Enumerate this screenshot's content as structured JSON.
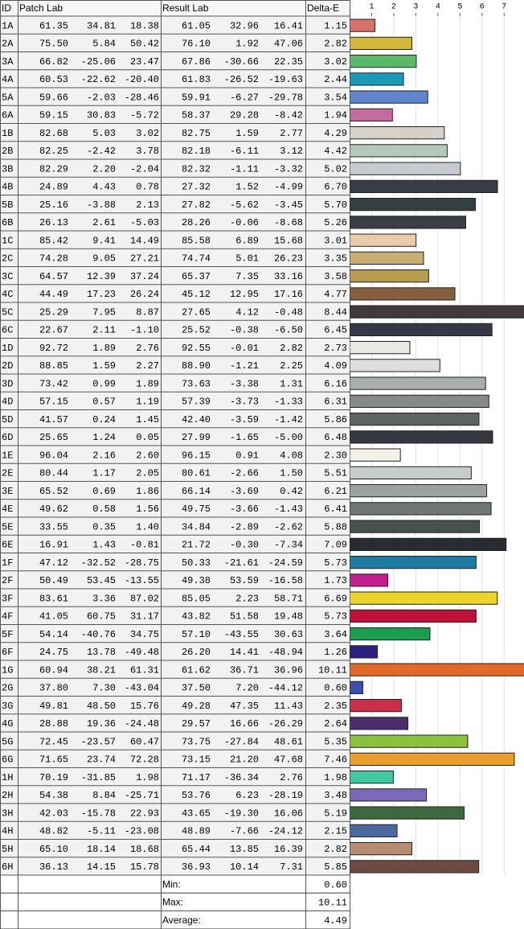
{
  "header": {
    "id": "ID",
    "patch": "Patch Lab",
    "result": "Result Lab",
    "delta": "Delta-E"
  },
  "chart": {
    "xlim": [
      0,
      7.9
    ],
    "xticks": [
      1,
      2,
      3,
      4,
      5,
      6,
      7
    ]
  },
  "rows": [
    {
      "id": "1A",
      "patch": [
        "61.35",
        "34.81",
        "18.38"
      ],
      "result": [
        "61.05",
        "32.96",
        "16.41"
      ],
      "delta_e": "1.15",
      "color": "#d9706a"
    },
    {
      "id": "2A",
      "patch": [
        "75.50",
        "5.84",
        "50.42"
      ],
      "result": [
        "76.10",
        "1.92",
        "47.06"
      ],
      "delta_e": "2.82",
      "color": "#d4b83a"
    },
    {
      "id": "3A",
      "patch": [
        "66.82",
        "-25.06",
        "23.47"
      ],
      "result": [
        "67.86",
        "-30.66",
        "22.35"
      ],
      "delta_e": "3.02",
      "color": "#5cb86a"
    },
    {
      "id": "4A",
      "patch": [
        "60.53",
        "-22.62",
        "-20.40"
      ],
      "result": [
        "61.83",
        "-26.52",
        "-19.63"
      ],
      "delta_e": "2.44",
      "color": "#1b9ab8"
    },
    {
      "id": "5A",
      "patch": [
        "59.66",
        "-2.03",
        "-28.46"
      ],
      "result": [
        "59.91",
        "-6.27",
        "-29.78"
      ],
      "delta_e": "3.54",
      "color": "#5f86cc"
    },
    {
      "id": "6A",
      "patch": [
        "59.15",
        "30.83",
        "-5.72"
      ],
      "result": [
        "58.37",
        "29.28",
        "-8.42"
      ],
      "delta_e": "1.94",
      "color": "#c56a9c"
    },
    {
      "id": "1B",
      "patch": [
        "82.68",
        "5.03",
        "3.02"
      ],
      "result": [
        "82.75",
        "1.59",
        "2.77"
      ],
      "delta_e": "4.29",
      "color": "#d6d0cb"
    },
    {
      "id": "2B",
      "patch": [
        "82.25",
        "-2.42",
        "3.78"
      ],
      "result": [
        "82.18",
        "-6.11",
        "3.12"
      ],
      "delta_e": "4.42",
      "color": "#b5c9bb"
    },
    {
      "id": "3B",
      "patch": [
        "82.29",
        "2.20",
        "-2.04"
      ],
      "result": [
        "82.32",
        "-1.11",
        "-3.32"
      ],
      "delta_e": "5.02",
      "color": "#c7cbd1"
    },
    {
      "id": "4B",
      "patch": [
        "24.89",
        "4.43",
        "0.78"
      ],
      "result": [
        "27.32",
        "1.52",
        "-4.99"
      ],
      "delta_e": "6.70",
      "color": "#3a3c44"
    },
    {
      "id": "5B",
      "patch": [
        "25.16",
        "-3.88",
        "2.13"
      ],
      "result": [
        "27.82",
        "-5.62",
        "-3.45"
      ],
      "delta_e": "5.70",
      "color": "#33403f"
    },
    {
      "id": "6B",
      "patch": [
        "26.13",
        "2.61",
        "-5.03"
      ],
      "result": [
        "28.26",
        "-0.06",
        "-8.68"
      ],
      "delta_e": "5.26",
      "color": "#3a3d44"
    },
    {
      "id": "1C",
      "patch": [
        "85.42",
        "9.41",
        "14.49"
      ],
      "result": [
        "85.58",
        "6.89",
        "15.68"
      ],
      "delta_e": "3.01",
      "color": "#e8cba8"
    },
    {
      "id": "2C",
      "patch": [
        "74.28",
        "9.05",
        "27.21"
      ],
      "result": [
        "74.74",
        "5.01",
        "26.23"
      ],
      "delta_e": "3.35",
      "color": "#c8ad74"
    },
    {
      "id": "3C",
      "patch": [
        "64.57",
        "12.39",
        "37.24"
      ],
      "result": [
        "65.37",
        "7.35",
        "33.16"
      ],
      "delta_e": "3.58",
      "color": "#b79c50"
    },
    {
      "id": "4C",
      "patch": [
        "44.49",
        "17.23",
        "26.24"
      ],
      "result": [
        "45.12",
        "12.95",
        "17.16"
      ],
      "delta_e": "4.77",
      "color": "#855f3e"
    },
    {
      "id": "5C",
      "patch": [
        "25.29",
        "7.95",
        "8.87"
      ],
      "result": [
        "27.65",
        "4.12",
        "-0.48"
      ],
      "delta_e": "8.44",
      "color": "#41393a"
    },
    {
      "id": "6C",
      "patch": [
        "22.67",
        "2.11",
        "-1.10"
      ],
      "result": [
        "25.52",
        "-0.38",
        "-6.50"
      ],
      "delta_e": "6.45",
      "color": "#363848"
    },
    {
      "id": "1D",
      "patch": [
        "92.72",
        "1.89",
        "2.76"
      ],
      "result": [
        "92.55",
        "-0.01",
        "2.82"
      ],
      "delta_e": "2.73",
      "color": "#e9e8e3"
    },
    {
      "id": "2D",
      "patch": [
        "88.85",
        "1.59",
        "2.27"
      ],
      "result": [
        "88.90",
        "-1.21",
        "2.25"
      ],
      "delta_e": "4.09",
      "color": "#dcdfdb"
    },
    {
      "id": "3D",
      "patch": [
        "73.42",
        "0.99",
        "1.89"
      ],
      "result": [
        "73.63",
        "-3.38",
        "1.31"
      ],
      "delta_e": "6.16",
      "color": "#a9b0ac"
    },
    {
      "id": "4D",
      "patch": [
        "57.15",
        "0.57",
        "1.19"
      ],
      "result": [
        "57.39",
        "-3.73",
        "-1.33"
      ],
      "delta_e": "6.31",
      "color": "#838a87"
    },
    {
      "id": "5D",
      "patch": [
        "41.57",
        "0.24",
        "1.45"
      ],
      "result": [
        "42.40",
        "-3.59",
        "-1.42"
      ],
      "delta_e": "5.86",
      "color": "#5b6461"
    },
    {
      "id": "6D",
      "patch": [
        "25.65",
        "1.24",
        "0.05"
      ],
      "result": [
        "27.99",
        "-1.65",
        "-5.00"
      ],
      "delta_e": "6.48",
      "color": "#343840"
    },
    {
      "id": "1E",
      "patch": [
        "96.04",
        "2.16",
        "2.60"
      ],
      "result": [
        "96.15",
        "0.91",
        "4.08"
      ],
      "delta_e": "2.30",
      "color": "#f4f2e8"
    },
    {
      "id": "2E",
      "patch": [
        "80.44",
        "1.17",
        "2.05"
      ],
      "result": [
        "80.61",
        "-2.66",
        "1.50"
      ],
      "delta_e": "5.51",
      "color": "#c7cdc9"
    },
    {
      "id": "3E",
      "patch": [
        "65.52",
        "0.69",
        "1.86"
      ],
      "result": [
        "66.14",
        "-3.69",
        "0.42"
      ],
      "delta_e": "6.21",
      "color": "#9aa19e"
    },
    {
      "id": "4E",
      "patch": [
        "49.62",
        "0.58",
        "1.56"
      ],
      "result": [
        "49.75",
        "-3.66",
        "-1.43"
      ],
      "delta_e": "6.41",
      "color": "#6f7674"
    },
    {
      "id": "5E",
      "patch": [
        "33.55",
        "0.35",
        "1.40"
      ],
      "result": [
        "34.84",
        "-2.89",
        "-2.62"
      ],
      "delta_e": "5.88",
      "color": "#4a5050"
    },
    {
      "id": "6E",
      "patch": [
        "16.91",
        "1.43",
        "-0.81"
      ],
      "result": [
        "21.72",
        "-0.30",
        "-7.34"
      ],
      "delta_e": "7.09",
      "color": "#282b30"
    },
    {
      "id": "1F",
      "patch": [
        "47.12",
        "-32.52",
        "-28.75"
      ],
      "result": [
        "50.33",
        "-21.61",
        "-24.59"
      ],
      "delta_e": "5.73",
      "color": "#1e7ca3"
    },
    {
      "id": "2F",
      "patch": [
        "50.49",
        "53.45",
        "-13.55"
      ],
      "result": [
        "49.38",
        "53.59",
        "-16.58"
      ],
      "delta_e": "1.73",
      "color": "#c2208e"
    },
    {
      "id": "3F",
      "patch": [
        "83.61",
        "3.36",
        "87.02"
      ],
      "result": [
        "85.05",
        "2.23",
        "58.71"
      ],
      "delta_e": "6.69",
      "color": "#ecd52a"
    },
    {
      "id": "4F",
      "patch": [
        "41.05",
        "60.75",
        "31.17"
      ],
      "result": [
        "43.82",
        "51.58",
        "19.48"
      ],
      "delta_e": "5.73",
      "color": "#c01038"
    },
    {
      "id": "5F",
      "patch": [
        "54.14",
        "-40.76",
        "34.75"
      ],
      "result": [
        "57.10",
        "-43.55",
        "30.63"
      ],
      "delta_e": "3.64",
      "color": "#1c9c4e"
    },
    {
      "id": "6F",
      "patch": [
        "24.75",
        "13.78",
        "-49.48"
      ],
      "result": [
        "26.20",
        "14.41",
        "-48.94"
      ],
      "delta_e": "1.26",
      "color": "#2c2080"
    },
    {
      "id": "1G",
      "patch": [
        "60.94",
        "38.21",
        "61.31"
      ],
      "result": [
        "61.62",
        "36.71",
        "36.96"
      ],
      "delta_e": "10.11",
      "color": "#e06a2a"
    },
    {
      "id": "2G",
      "patch": [
        "37.80",
        "7.30",
        "-43.04"
      ],
      "result": [
        "37.50",
        "7.20",
        "-44.12"
      ],
      "delta_e": "0.60",
      "color": "#3c4cb0"
    },
    {
      "id": "3G",
      "patch": [
        "49.81",
        "48.50",
        "15.76"
      ],
      "result": [
        "49.28",
        "47.35",
        "11.43"
      ],
      "delta_e": "2.35",
      "color": "#c8304a"
    },
    {
      "id": "4G",
      "patch": [
        "28.88",
        "19.36",
        "-24.48"
      ],
      "result": [
        "29.57",
        "16.66",
        "-26.29"
      ],
      "delta_e": "2.64",
      "color": "#4c2e6c"
    },
    {
      "id": "5G",
      "patch": [
        "72.45",
        "-23.57",
        "60.47"
      ],
      "result": [
        "73.75",
        "-27.84",
        "48.61"
      ],
      "delta_e": "5.35",
      "color": "#8cc040"
    },
    {
      "id": "6G",
      "patch": [
        "71.65",
        "23.74",
        "72.28"
      ],
      "result": [
        "73.15",
        "21.20",
        "47.68"
      ],
      "delta_e": "7.46",
      "color": "#eaa028"
    },
    {
      "id": "1H",
      "patch": [
        "70.19",
        "-31.85",
        "1.98"
      ],
      "result": [
        "71.17",
        "-36.34",
        "2.76"
      ],
      "delta_e": "1.98",
      "color": "#40c8a0"
    },
    {
      "id": "2H",
      "patch": [
        "54.38",
        "8.84",
        "-25.71"
      ],
      "result": [
        "53.76",
        "6.23",
        "-28.19"
      ],
      "delta_e": "3.48",
      "color": "#7a68b8"
    },
    {
      "id": "3H",
      "patch": [
        "42.03",
        "-15.78",
        "22.93"
      ],
      "result": [
        "43.65",
        "-19.30",
        "16.06"
      ],
      "delta_e": "5.19",
      "color": "#3c6a40"
    },
    {
      "id": "4H",
      "patch": [
        "48.82",
        "-5.11",
        "-23.08"
      ],
      "result": [
        "48.89",
        "-7.66",
        "-24.12"
      ],
      "delta_e": "2.15",
      "color": "#4a6aa0"
    },
    {
      "id": "5H",
      "patch": [
        "65.10",
        "18.14",
        "18.68"
      ],
      "result": [
        "65.44",
        "13.85",
        "16.39"
      ],
      "delta_e": "2.82",
      "color": "#b88c70"
    },
    {
      "id": "6H",
      "patch": [
        "36.13",
        "14.15",
        "15.78"
      ],
      "result": [
        "36.93",
        "10.14",
        "7.31"
      ],
      "delta_e": "5.85",
      "color": "#6e4a42"
    }
  ],
  "summary": [
    {
      "label": "Min:",
      "value": "0.60"
    },
    {
      "label": "Max:",
      "value": "10.11"
    },
    {
      "label": "Average:",
      "value": "4.49"
    }
  ]
}
